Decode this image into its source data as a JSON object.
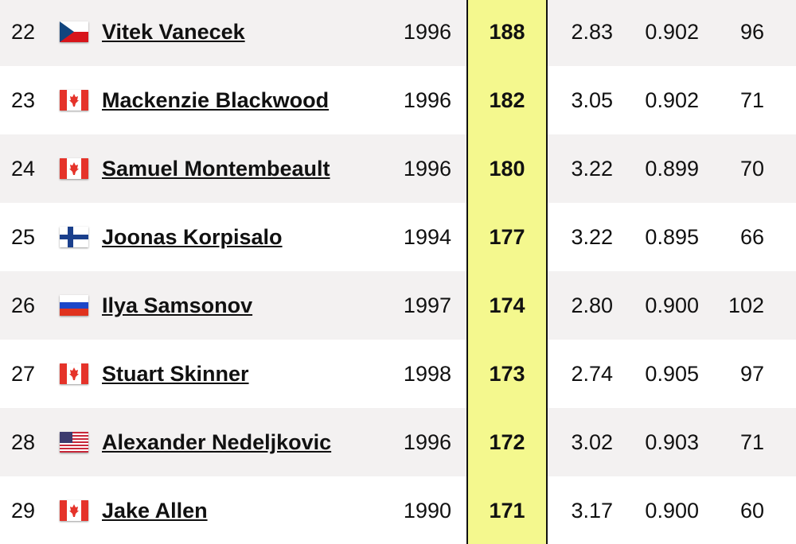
{
  "table": {
    "rows": [
      [
        "22",
        "Vitek Vanecek",
        "1996",
        "188",
        "2.83",
        "0.902",
        "96"
      ],
      [
        "23",
        "Mackenzie Blackwood",
        "1996",
        "182",
        "3.05",
        "0.902",
        "71"
      ],
      [
        "24",
        "Samuel Montembeault",
        "1996",
        "180",
        "3.22",
        "0.899",
        "70"
      ],
      [
        "25",
        "Joonas Korpisalo",
        "1994",
        "177",
        "3.22",
        "0.895",
        "66"
      ],
      [
        "26",
        "Ilya Samsonov",
        "1997",
        "174",
        "2.80",
        "0.900",
        "102"
      ],
      [
        "27",
        "Stuart Skinner",
        "1998",
        "173",
        "2.74",
        "0.905",
        "97"
      ],
      [
        "28",
        "Alexander Nedeljkovic",
        "1996",
        "172",
        "3.02",
        "0.903",
        "71"
      ],
      [
        "29",
        "Jake Allen",
        "1990",
        "171",
        "3.17",
        "0.900",
        "60"
      ]
    ]
  }
}
